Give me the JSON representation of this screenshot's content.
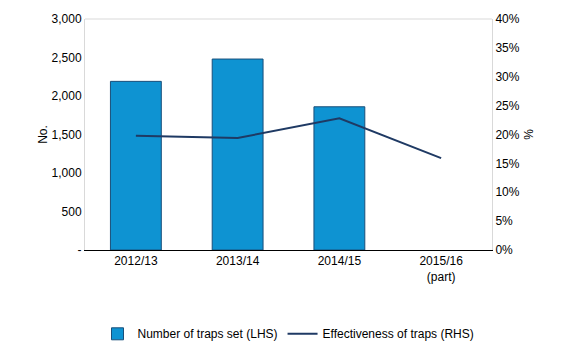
{
  "chart_data": {
    "type": "bar",
    "categories": [
      "2012/13",
      "2013/14",
      "2014/15",
      "2015/16 (part)"
    ],
    "series": [
      {
        "name": "Number of traps set (LHS)",
        "type": "bar",
        "color": "#0e93d2",
        "axis": "y",
        "values": [
          2190,
          2480,
          1860,
          null
        ]
      },
      {
        "name": "Effectiveness of traps (RHS)",
        "type": "line",
        "color": "#1f3a64",
        "axis": "y2",
        "values": [
          19.8,
          19.4,
          22.8,
          15.9
        ]
      }
    ],
    "y_label": "No.",
    "y2_label": "%",
    "ylim": [
      0,
      3000
    ],
    "yticks": [
      {
        "value": 0,
        "label": "-"
      },
      500,
      {
        "value": 1000,
        "label": "1,000"
      },
      {
        "value": 1500,
        "label": "1,500"
      },
      {
        "value": 2000,
        "label": "2,000"
      },
      {
        "value": 2500,
        "label": "2,500"
      },
      {
        "value": 3000,
        "label": "3,000"
      }
    ],
    "y2lim": [
      0,
      40
    ],
    "y2ticks": [
      {
        "value": 0,
        "label": "0%"
      },
      {
        "value": 5,
        "label": "5%"
      },
      {
        "value": 10,
        "label": "10%"
      },
      {
        "value": 15,
        "label": "15%"
      },
      {
        "value": 20,
        "label": "20%"
      },
      {
        "value": 25,
        "label": "25%"
      },
      {
        "value": 30,
        "label": "30%"
      },
      {
        "value": 35,
        "label": "35%"
      },
      {
        "value": 40,
        "label": "40%"
      }
    ],
    "grid": false,
    "legend": "bottom"
  }
}
